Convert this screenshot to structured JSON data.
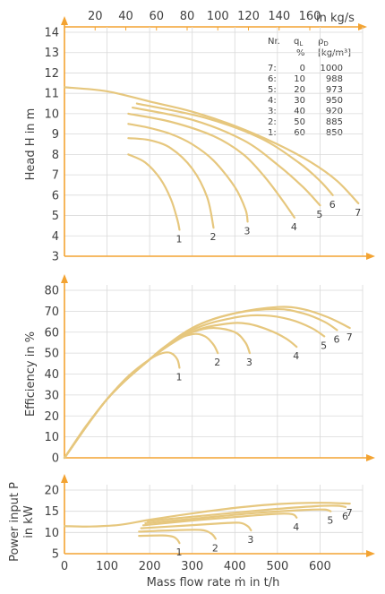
{
  "colors": {
    "axis": "#f3a332",
    "curve": "#e6c77e",
    "grid": "#d9d9d9",
    "text": "#404040"
  },
  "top_axis": {
    "unit_label": "in kg/s",
    "ticks": [
      20,
      40,
      60,
      80,
      100,
      120,
      140,
      160
    ]
  },
  "x_axis": {
    "title": "Mass flow rate  ṁ in t/h",
    "ticks": [
      0,
      100,
      200,
      300,
      400,
      500,
      600
    ]
  },
  "legend": {
    "headers": [
      "Nr.",
      "q_L %",
      "ρ_D [kg/m³]"
    ],
    "rows": [
      [
        "7:",
        "0",
        "1000"
      ],
      [
        "6:",
        "10",
        "988"
      ],
      [
        "5:",
        "20",
        "973"
      ],
      [
        "4:",
        "30",
        "950"
      ],
      [
        "3:",
        "40",
        "920"
      ],
      [
        "2:",
        "50",
        "885"
      ],
      [
        "1:",
        "60",
        "850"
      ]
    ]
  },
  "chart_data": [
    {
      "type": "line",
      "ylabel": "Head H in m",
      "ylim": [
        3,
        14
      ],
      "xlim": [
        0,
        700
      ],
      "yticks": [
        3,
        4,
        5,
        6,
        7,
        8,
        9,
        10,
        11,
        12,
        13,
        14
      ],
      "grid": true,
      "series": [
        {
          "name": "1",
          "x": [
            150,
            190,
            225,
            250,
            265,
            270
          ],
          "y": [
            8.0,
            7.6,
            6.8,
            5.8,
            4.8,
            4.3
          ]
        },
        {
          "name": "2",
          "x": [
            150,
            200,
            250,
            300,
            335,
            350
          ],
          "y": [
            8.8,
            8.7,
            8.3,
            7.3,
            5.9,
            4.4
          ]
        },
        {
          "name": "3",
          "x": [
            150,
            200,
            250,
            300,
            350,
            400,
            425,
            430
          ],
          "y": [
            9.5,
            9.3,
            9.0,
            8.5,
            7.7,
            6.4,
            5.3,
            4.7
          ]
        },
        {
          "name": "4",
          "x": [
            150,
            250,
            350,
            420,
            470,
            510,
            540
          ],
          "y": [
            10.0,
            9.6,
            8.9,
            8.0,
            6.9,
            5.8,
            4.9
          ]
        },
        {
          "name": "5",
          "x": [
            160,
            300,
            420,
            500,
            560,
            600
          ],
          "y": [
            10.3,
            9.7,
            8.7,
            7.5,
            6.4,
            5.5
          ]
        },
        {
          "name": "6",
          "x": [
            170,
            330,
            460,
            550,
            600,
            630
          ],
          "y": [
            10.5,
            9.8,
            8.8,
            7.6,
            6.7,
            6.0
          ]
        },
        {
          "name": "7",
          "x": [
            0,
            100,
            200,
            300,
            400,
            500,
            580,
            640,
            690
          ],
          "y": [
            11.3,
            11.1,
            10.6,
            10.1,
            9.4,
            8.5,
            7.6,
            6.7,
            5.6
          ]
        }
      ]
    },
    {
      "type": "line",
      "ylabel": "Efficiency in %",
      "ylim": [
        0,
        80
      ],
      "xlim": [
        0,
        700
      ],
      "yticks": [
        0,
        10,
        20,
        30,
        40,
        50,
        60,
        70,
        80
      ],
      "grid": true,
      "series": [
        {
          "name": "1",
          "x": [
            0,
            50,
            100,
            150,
            200,
            230,
            250,
            265,
            270
          ],
          "y": [
            0,
            15,
            28,
            39,
            47,
            50,
            50,
            47,
            43
          ]
        },
        {
          "name": "2",
          "x": [
            0,
            100,
            200,
            250,
            300,
            330,
            350,
            360
          ],
          "y": [
            0,
            28,
            47,
            55,
            59,
            58,
            54,
            50
          ]
        },
        {
          "name": "3",
          "x": [
            0,
            100,
            200,
            250,
            300,
            350,
            400,
            425,
            435
          ],
          "y": [
            0,
            28,
            47,
            55,
            60,
            62,
            60,
            55,
            50
          ]
        },
        {
          "name": "4",
          "x": [
            0,
            100,
            200,
            300,
            380,
            430,
            480,
            520,
            545
          ],
          "y": [
            0,
            28,
            47,
            60,
            64,
            64,
            61,
            57,
            53
          ]
        },
        {
          "name": "5",
          "x": [
            0,
            100,
            200,
            300,
            400,
            470,
            530,
            580,
            610
          ],
          "y": [
            0,
            28,
            47,
            61,
            67,
            68,
            66,
            62,
            58
          ]
        },
        {
          "name": "6",
          "x": [
            0,
            100,
            200,
            300,
            400,
            500,
            560,
            610,
            640
          ],
          "y": [
            0,
            28,
            47,
            62,
            69,
            71,
            69,
            65,
            61
          ]
        },
        {
          "name": "7",
          "x": [
            0,
            100,
            200,
            300,
            400,
            500,
            560,
            620,
            670
          ],
          "y": [
            0,
            28,
            47,
            62,
            69,
            72,
            71,
            67,
            62
          ]
        }
      ]
    },
    {
      "type": "line",
      "ylabel": "Power input P in kW",
      "ylim": [
        5,
        20
      ],
      "xlim": [
        0,
        700
      ],
      "yticks": [
        5,
        10,
        15,
        20
      ],
      "grid": true,
      "series": [
        {
          "name": "1",
          "x": [
            175,
            230,
            255,
            265,
            270
          ],
          "y": [
            9.2,
            9.3,
            9.0,
            8.3,
            7.5
          ]
        },
        {
          "name": "2",
          "x": [
            175,
            250,
            320,
            345,
            355
          ],
          "y": [
            10.2,
            10.5,
            10.6,
            9.7,
            8.5
          ]
        },
        {
          "name": "3",
          "x": [
            180,
            280,
            360,
            410,
            430,
            438
          ],
          "y": [
            11.0,
            11.6,
            12.1,
            12.3,
            11.5,
            10.5
          ]
        },
        {
          "name": "4",
          "x": [
            185,
            300,
            420,
            500,
            535,
            545
          ],
          "y": [
            11.7,
            12.8,
            13.8,
            14.4,
            14.3,
            13.5
          ]
        },
        {
          "name": "5",
          "x": [
            190,
            320,
            450,
            560,
            610,
            625
          ],
          "y": [
            12.2,
            13.4,
            14.6,
            15.3,
            15.4,
            15.0
          ]
        },
        {
          "name": "6",
          "x": [
            195,
            340,
            480,
            590,
            640,
            660
          ],
          "y": [
            12.7,
            14.1,
            15.4,
            16.2,
            16.3,
            16.0
          ]
        },
        {
          "name": "7",
          "x": [
            0,
            60,
            130,
            200,
            300,
            400,
            500,
            600,
            670
          ],
          "y": [
            11.5,
            11.4,
            11.8,
            13.0,
            14.5,
            15.8,
            16.7,
            17.0,
            16.8
          ]
        }
      ]
    }
  ]
}
